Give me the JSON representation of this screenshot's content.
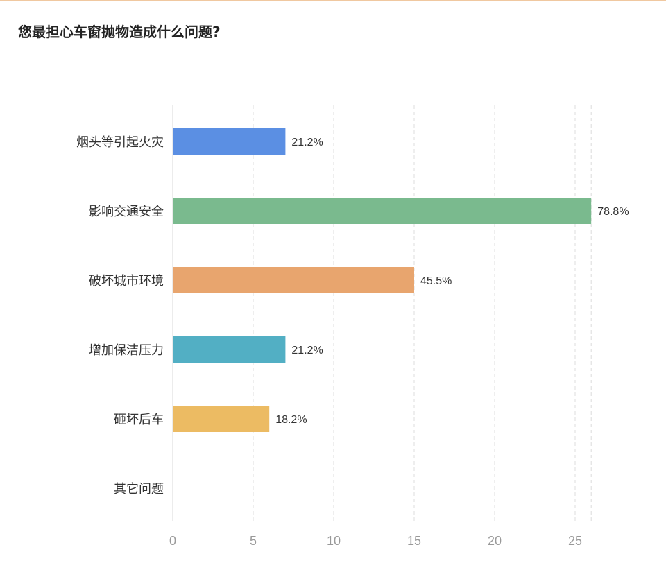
{
  "chart_data": {
    "type": "bar",
    "orientation": "horizontal",
    "title": "您最担心车窗抛物造成什么问题?",
    "categories": [
      "烟头等引起火灾",
      "影响交通安全",
      "破坏城市环境",
      "增加保洁压力",
      "砸坏后车",
      "其它问题"
    ],
    "values": [
      7,
      26,
      15,
      7,
      6,
      0
    ],
    "value_labels": [
      "21.2%",
      "78.8%",
      "45.5%",
      "21.2%",
      "18.2%",
      ""
    ],
    "colors": [
      "#5b8fe3",
      "#7aba8e",
      "#e8a56e",
      "#52afc4",
      "#ecbb63",
      "#cccccc"
    ],
    "xlim": [
      0,
      26
    ],
    "xticks": [
      "0",
      "5",
      "10",
      "15",
      "20",
      "25"
    ],
    "grid": true,
    "xlabel": "",
    "ylabel": ""
  }
}
